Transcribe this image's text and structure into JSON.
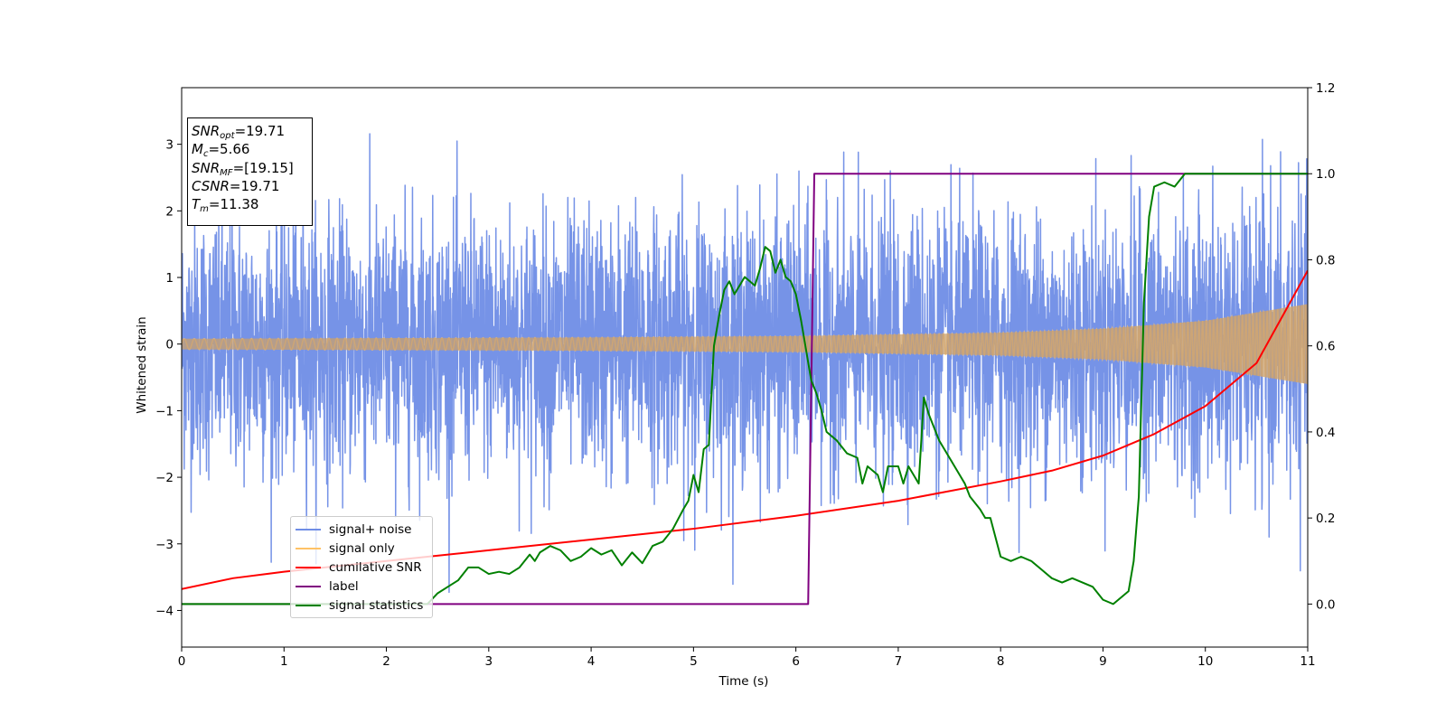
{
  "chart_data": {
    "type": "line",
    "xlabel": "Time (s)",
    "ylabel": "Whitened strain",
    "xlim": [
      0,
      11
    ],
    "ylim_left": [
      -4.55,
      3.85
    ],
    "ylim_right": [
      -0.1,
      1.2
    ],
    "x_ticks": [
      "0",
      "1",
      "2",
      "3",
      "4",
      "5",
      "6",
      "7",
      "8",
      "9",
      "10",
      "11"
    ],
    "y_ticks_left": [
      "−4",
      "−3",
      "−2",
      "−1",
      "0",
      "1",
      "2",
      "3"
    ],
    "y_ticks_right": [
      "0.0",
      "0.2",
      "0.4",
      "0.6",
      "0.8",
      "1.0",
      "1.2"
    ],
    "annotation": {
      "snr_opt": "=19.71",
      "mc": "=5.66",
      "snr_mf": "=[19.15]",
      "csnr": "=19.71",
      "tm": "=11.38"
    },
    "legend": [
      "signal+ noise",
      "signal only",
      "cumilative SNR",
      "label",
      "signal statistics"
    ],
    "series": [
      {
        "name": "signal+ noise",
        "axis": "left",
        "color": "#6f8de6",
        "description_values": {
          "noise_sigma": 1.0,
          "x_range": [
            0,
            11
          ]
        }
      },
      {
        "name": "signal only",
        "axis": "left",
        "color": "#ffc266",
        "envelope": {
          "x": [
            0,
            2,
            4,
            6,
            8,
            9,
            10,
            11
          ],
          "amplitude": [
            0.08,
            0.09,
            0.1,
            0.12,
            0.17,
            0.23,
            0.35,
            0.6
          ]
        }
      },
      {
        "name": "cumilative SNR",
        "axis": "right",
        "color": "#ff0000",
        "x": [
          0,
          0.5,
          1,
          2,
          3,
          4,
          5,
          6,
          7,
          8,
          8.5,
          9,
          9.5,
          10,
          10.5,
          11
        ],
        "values": [
          0.035,
          0.06,
          0.075,
          0.1,
          0.125,
          0.15,
          0.175,
          0.205,
          0.24,
          0.285,
          0.31,
          0.345,
          0.395,
          0.46,
          0.56,
          0.775
        ]
      },
      {
        "name": "label",
        "axis": "right",
        "color": "#800080",
        "x": [
          0,
          6.12,
          6.18,
          11
        ],
        "values": [
          0.0,
          0.0,
          1.0,
          1.0
        ]
      },
      {
        "name": "signal statistics",
        "axis": "right",
        "color": "#008000",
        "x": [
          0,
          0.5,
          1,
          1.5,
          2,
          2.2,
          2.4,
          2.5,
          2.6,
          2.7,
          2.8,
          2.9,
          3.0,
          3.1,
          3.2,
          3.3,
          3.4,
          3.45,
          3.5,
          3.6,
          3.7,
          3.8,
          3.9,
          4.0,
          4.1,
          4.2,
          4.3,
          4.4,
          4.5,
          4.6,
          4.7,
          4.8,
          4.9,
          4.95,
          5.0,
          5.05,
          5.1,
          5.15,
          5.2,
          5.25,
          5.3,
          5.35,
          5.4,
          5.5,
          5.6,
          5.65,
          5.7,
          5.75,
          5.8,
          5.85,
          5.9,
          5.95,
          6.0,
          6.05,
          6.1,
          6.15,
          6.2,
          6.25,
          6.3,
          6.4,
          6.5,
          6.6,
          6.65,
          6.7,
          6.8,
          6.85,
          6.9,
          7.0,
          7.05,
          7.1,
          7.15,
          7.2,
          7.25,
          7.3,
          7.4,
          7.5,
          7.6,
          7.65,
          7.7,
          7.8,
          7.85,
          7.9,
          8.0,
          8.1,
          8.2,
          8.3,
          8.4,
          8.5,
          8.6,
          8.7,
          8.8,
          8.9,
          9.0,
          9.1,
          9.15,
          9.2,
          9.25,
          9.3,
          9.35,
          9.4,
          9.45,
          9.5,
          9.6,
          9.7,
          9.8,
          9.9,
          10.0,
          10.2,
          10.5,
          11.0
        ],
        "values": [
          0.0,
          0.0,
          0.0,
          0.0,
          0.0,
          0.0,
          0.0,
          0.025,
          0.04,
          0.055,
          0.085,
          0.085,
          0.07,
          0.075,
          0.07,
          0.085,
          0.115,
          0.1,
          0.12,
          0.135,
          0.125,
          0.1,
          0.11,
          0.13,
          0.115,
          0.125,
          0.09,
          0.12,
          0.095,
          0.135,
          0.145,
          0.175,
          0.22,
          0.24,
          0.3,
          0.26,
          0.36,
          0.37,
          0.6,
          0.67,
          0.73,
          0.75,
          0.72,
          0.76,
          0.74,
          0.78,
          0.83,
          0.82,
          0.77,
          0.8,
          0.76,
          0.75,
          0.72,
          0.66,
          0.59,
          0.52,
          0.49,
          0.45,
          0.4,
          0.38,
          0.35,
          0.34,
          0.28,
          0.32,
          0.3,
          0.26,
          0.32,
          0.32,
          0.28,
          0.32,
          0.3,
          0.28,
          0.48,
          0.44,
          0.38,
          0.34,
          0.3,
          0.28,
          0.25,
          0.22,
          0.2,
          0.2,
          0.11,
          0.1,
          0.11,
          0.1,
          0.08,
          0.06,
          0.05,
          0.06,
          0.05,
          0.04,
          0.01,
          0.0,
          0.01,
          0.02,
          0.03,
          0.1,
          0.25,
          0.7,
          0.9,
          0.97,
          0.98,
          0.97,
          1.0,
          1.0,
          1.0,
          1.0,
          1.0,
          1.0
        ]
      }
    ]
  }
}
